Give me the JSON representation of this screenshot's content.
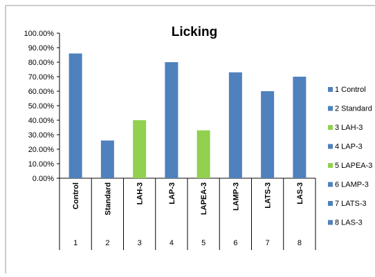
{
  "chart_data": {
    "type": "bar",
    "title": "Licking",
    "categories": [
      "Control",
      "Standard",
      "LAH-3",
      "LAP-3",
      "LAPEA-3",
      "LAMP-3",
      "LATS-3",
      "LAS-3"
    ],
    "numbers": [
      "1",
      "2",
      "3",
      "4",
      "5",
      "6",
      "7",
      "8"
    ],
    "values": [
      86,
      26,
      40,
      80,
      33,
      73,
      60,
      70
    ],
    "colors": [
      "#4f81bd",
      "#4f81bd",
      "#92d050",
      "#4f81bd",
      "#92d050",
      "#4f81bd",
      "#4f81bd",
      "#4f81bd"
    ],
    "ylim": [
      0,
      100
    ],
    "yticks": [
      "0.00%",
      "10.00%",
      "20.00%",
      "30.00%",
      "40.00%",
      "50.00%",
      "60.00%",
      "70.00%",
      "80.00%",
      "90.00%",
      "100.00%"
    ],
    "legend": [
      "1 Control",
      "2 Standard",
      "3 LAH-3",
      "4 LAP-3",
      "5 LAPEA-3",
      "6 LAMP-3",
      "7 LATS-3",
      "8 LAS-3"
    ],
    "legend_position": "right",
    "grid": false
  }
}
